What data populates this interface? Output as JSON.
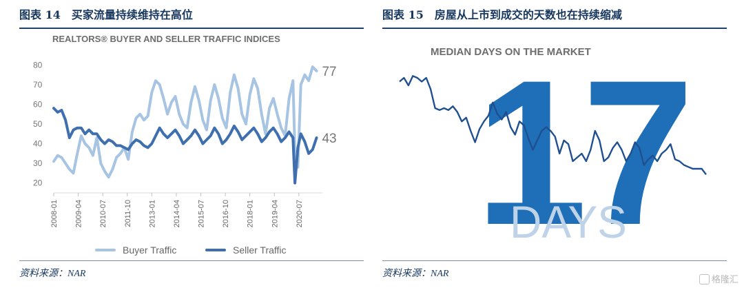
{
  "left": {
    "figure_title": "图表 14　买家流量持续维持在高位",
    "source": "资料来源：NAR",
    "chart_data": {
      "type": "line",
      "title": "REALTORS® BUYER AND SELLER TRAFFIC INDICES",
      "ylim": [
        15,
        85
      ],
      "y_ticks": [
        20,
        30,
        40,
        50,
        60,
        70,
        80
      ],
      "x_ticks": [
        "2008-01",
        "2009-04",
        "2010-07",
        "2011-10",
        "2013-01",
        "2014-04",
        "2015-07",
        "2016-10",
        "2018-01",
        "2019-04",
        "2020-07"
      ],
      "legend": "bottom",
      "grid": false,
      "series": [
        {
          "name": "Buyer Traffic",
          "color": "#a7c4e2",
          "end_label": "77",
          "points": [
            [
              2008.0,
              31
            ],
            [
              2008.2,
              34
            ],
            [
              2008.4,
              33
            ],
            [
              2008.6,
              30
            ],
            [
              2008.8,
              27
            ],
            [
              2009.0,
              25
            ],
            [
              2009.2,
              35
            ],
            [
              2009.4,
              44
            ],
            [
              2009.6,
              40
            ],
            [
              2009.8,
              38
            ],
            [
              2010.0,
              34
            ],
            [
              2010.2,
              43
            ],
            [
              2010.4,
              30
            ],
            [
              2010.6,
              26
            ],
            [
              2010.8,
              23
            ],
            [
              2011.0,
              27
            ],
            [
              2011.2,
              33
            ],
            [
              2011.4,
              35
            ],
            [
              2011.6,
              38
            ],
            [
              2011.8,
              32
            ],
            [
              2012.0,
              46
            ],
            [
              2012.2,
              53
            ],
            [
              2012.4,
              55
            ],
            [
              2012.6,
              52
            ],
            [
              2012.8,
              54
            ],
            [
              2013.0,
              66
            ],
            [
              2013.2,
              72
            ],
            [
              2013.4,
              70
            ],
            [
              2013.6,
              63
            ],
            [
              2013.8,
              55
            ],
            [
              2014.0,
              61
            ],
            [
              2014.2,
              64
            ],
            [
              2014.4,
              55
            ],
            [
              2014.6,
              50
            ],
            [
              2014.8,
              48
            ],
            [
              2015.0,
              61
            ],
            [
              2015.2,
              69
            ],
            [
              2015.4,
              62
            ],
            [
              2015.6,
              52
            ],
            [
              2015.8,
              47
            ],
            [
              2016.0,
              62
            ],
            [
              2016.2,
              70
            ],
            [
              2016.4,
              63
            ],
            [
              2016.6,
              53
            ],
            [
              2016.8,
              48
            ],
            [
              2017.0,
              66
            ],
            [
              2017.2,
              75
            ],
            [
              2017.4,
              68
            ],
            [
              2017.6,
              55
            ],
            [
              2017.8,
              50
            ],
            [
              2018.0,
              65
            ],
            [
              2018.2,
              73
            ],
            [
              2018.4,
              68
            ],
            [
              2018.6,
              55
            ],
            [
              2018.8,
              45
            ],
            [
              2019.0,
              58
            ],
            [
              2019.2,
              63
            ],
            [
              2019.4,
              55
            ],
            [
              2019.6,
              48
            ],
            [
              2019.8,
              44
            ],
            [
              2020.0,
              63
            ],
            [
              2020.2,
              72
            ],
            [
              2020.3,
              36
            ],
            [
              2020.45,
              28
            ],
            [
              2020.6,
              70
            ],
            [
              2020.8,
              75
            ],
            [
              2021.0,
              72
            ],
            [
              2021.2,
              79
            ],
            [
              2021.4,
              77
            ]
          ]
        },
        {
          "name": "Seller Traffic",
          "color": "#3f6fae",
          "end_label": "43",
          "points": [
            [
              2008.0,
              58
            ],
            [
              2008.2,
              56
            ],
            [
              2008.4,
              57
            ],
            [
              2008.6,
              52
            ],
            [
              2008.8,
              43
            ],
            [
              2009.0,
              47
            ],
            [
              2009.2,
              48
            ],
            [
              2009.4,
              48
            ],
            [
              2009.6,
              45
            ],
            [
              2009.8,
              47
            ],
            [
              2010.0,
              45
            ],
            [
              2010.2,
              45
            ],
            [
              2010.4,
              42
            ],
            [
              2010.6,
              40
            ],
            [
              2010.8,
              42
            ],
            [
              2011.0,
              41
            ],
            [
              2011.2,
              39
            ],
            [
              2011.4,
              39
            ],
            [
              2011.6,
              38
            ],
            [
              2011.8,
              37
            ],
            [
              2012.0,
              40
            ],
            [
              2012.2,
              42
            ],
            [
              2012.4,
              41
            ],
            [
              2012.6,
              39
            ],
            [
              2012.8,
              38
            ],
            [
              2013.0,
              40
            ],
            [
              2013.2,
              44
            ],
            [
              2013.4,
              48
            ],
            [
              2013.6,
              45
            ],
            [
              2013.8,
              43
            ],
            [
              2014.0,
              45
            ],
            [
              2014.2,
              47
            ],
            [
              2014.4,
              44
            ],
            [
              2014.6,
              40
            ],
            [
              2014.8,
              42
            ],
            [
              2015.0,
              44
            ],
            [
              2015.2,
              47
            ],
            [
              2015.4,
              44
            ],
            [
              2015.6,
              40
            ],
            [
              2015.8,
              42
            ],
            [
              2016.0,
              44
            ],
            [
              2016.2,
              48
            ],
            [
              2016.4,
              45
            ],
            [
              2016.6,
              40
            ],
            [
              2016.8,
              42
            ],
            [
              2017.0,
              45
            ],
            [
              2017.2,
              49
            ],
            [
              2017.4,
              46
            ],
            [
              2017.6,
              42
            ],
            [
              2017.8,
              44
            ],
            [
              2018.0,
              46
            ],
            [
              2018.2,
              48
            ],
            [
              2018.4,
              45
            ],
            [
              2018.6,
              41
            ],
            [
              2018.8,
              43
            ],
            [
              2019.0,
              46
            ],
            [
              2019.2,
              48
            ],
            [
              2019.4,
              45
            ],
            [
              2019.6,
              41
            ],
            [
              2019.8,
              43
            ],
            [
              2020.0,
              46
            ],
            [
              2020.2,
              43
            ],
            [
              2020.3,
              20
            ],
            [
              2020.45,
              38
            ],
            [
              2020.6,
              45
            ],
            [
              2020.8,
              41
            ],
            [
              2021.0,
              35
            ],
            [
              2021.2,
              37
            ],
            [
              2021.4,
              43
            ]
          ]
        }
      ]
    }
  },
  "right": {
    "figure_title": "图表 15　房屋从上市到成交的天数也在持续缩减",
    "source": "资料来源：NAR",
    "chart_data": {
      "type": "line",
      "title": "MEDIAN DAYS ON THE MARKET",
      "big_number": "17",
      "big_unit": "DAYS",
      "grid": false,
      "series": [
        {
          "name": "",
          "color": "#1f4f8f",
          "values": [
            66,
            68,
            64,
            69,
            68,
            66,
            68,
            62,
            52,
            51,
            52,
            51,
            53,
            50,
            45,
            47,
            40,
            34,
            41,
            45,
            48,
            55,
            49,
            46,
            50,
            42,
            38,
            45,
            43,
            36,
            30,
            35,
            40,
            42,
            40,
            37,
            28,
            35,
            33,
            24,
            26,
            28,
            24,
            30,
            40,
            35,
            24,
            26,
            31,
            34,
            30,
            24,
            28,
            34,
            31,
            22,
            25,
            27,
            24,
            28,
            30,
            33,
            25,
            24,
            22,
            21,
            20,
            20,
            20,
            17
          ]
        }
      ]
    }
  },
  "watermark": "格隆汇"
}
